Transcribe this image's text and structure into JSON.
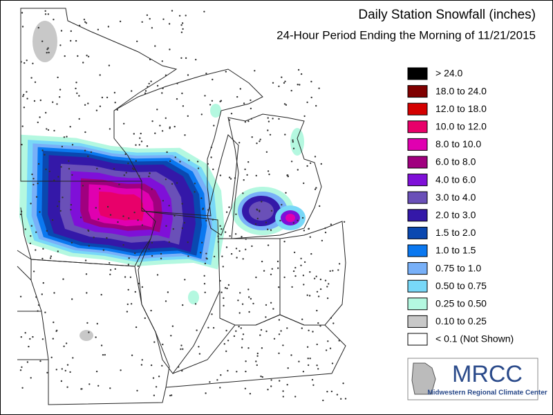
{
  "header": {
    "title": "Daily Station Snowfall (inches)",
    "subtitle": "24-Hour Period Ending the Morning of 11/21/2015"
  },
  "legend": {
    "entries": [
      {
        "label": "> 24.0",
        "color": "#000000"
      },
      {
        "label": "18.0 to 24.0",
        "color": "#7f0000"
      },
      {
        "label": "12.0 to 18.0",
        "color": "#d40000"
      },
      {
        "label": "10.0 to 12.0",
        "color": "#e8006a"
      },
      {
        "label": "8.0 to 10.0",
        "color": "#e000b0"
      },
      {
        "label": "6.0 to 8.0",
        "color": "#a0007f"
      },
      {
        "label": "4.0 to 6.0",
        "color": "#7f10d8"
      },
      {
        "label": "3.0 to 4.0",
        "color": "#6a50b8"
      },
      {
        "label": "2.0 to 3.0",
        "color": "#3418a8"
      },
      {
        "label": "1.5 to 2.0",
        "color": "#0a48b0"
      },
      {
        "label": "1.0 to 1.5",
        "color": "#0a78f0"
      },
      {
        "label": "0.75 to 1.0",
        "color": "#78b0f8"
      },
      {
        "label": "0.50 to 0.75",
        "color": "#78d8f8"
      },
      {
        "label": "0.25 to 0.50",
        "color": "#b4f8e0"
      },
      {
        "label": "0.10 to 0.25",
        "color": "#c8c8c8"
      },
      {
        "label": "< 0.1 (Not Shown)",
        "color": "#ffffff"
      }
    ]
  },
  "logo": {
    "text": "MRCC",
    "subtitle": "Midwestern Regional Climate Center"
  }
}
